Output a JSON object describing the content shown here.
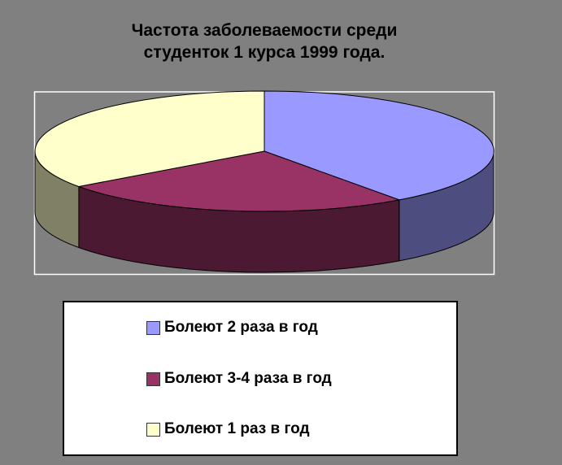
{
  "background_color": "#808080",
  "chart_data": {
    "type": "pie",
    "style": "3d",
    "title": "Частота заболеваемости среди студенток 1 курса 1999 года.",
    "title_lines": [
      "Частота заболеваемости среди",
      "студенток 1 курса 1999 года."
    ],
    "categories": [
      "Болеют 2 раза в год",
      "Болеют 3-4 раза в год",
      "Болеют 1 раз в год"
    ],
    "values": [
      40,
      25,
      35
    ],
    "values_note": "share of circle estimated from slice arc angles; no numeric data labels are shown in the image",
    "start_angle_deg": 270,
    "direction": "clockwise",
    "legend_position": "bottom",
    "slices": [
      {
        "label": "Болеют 2 раза в год",
        "value": 40,
        "color": "#9999FF",
        "side_color": "#4D4D80"
      },
      {
        "label": "Болеют 3-4 раза в год",
        "value": 25,
        "color": "#993366",
        "side_color": "#4C1933"
      },
      {
        "label": "Болеют 1 раз в год",
        "value": 35,
        "color": "#FFFFCC",
        "side_color": "#808066"
      }
    ],
    "outline_color": "#000000",
    "plot_area_border_color": "#FFFFFF",
    "legend_background": "#FFFFFF",
    "legend_border_color": "#000000",
    "title_color": "#000000"
  }
}
